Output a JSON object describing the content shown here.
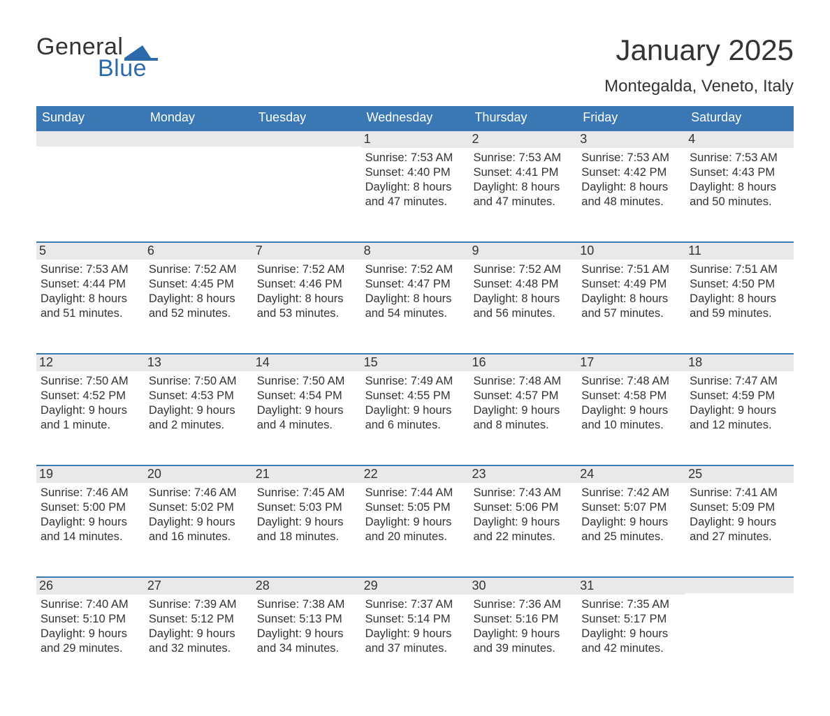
{
  "logo": {
    "text_general": "General",
    "text_blue": "Blue"
  },
  "title": "January 2025",
  "location": "Montegalda, Veneto, Italy",
  "colors": {
    "header_bar": "#3a78b5",
    "daynum_bg": "#e9e9e9",
    "text": "#333333",
    "logo_blue": "#2b6bab",
    "background": "#ffffff"
  },
  "fonts": {
    "title_size": 42,
    "location_size": 24,
    "weekday_size": 18,
    "daynum_size": 18,
    "body_size": 16.5
  },
  "weekdays": [
    "Sunday",
    "Monday",
    "Tuesday",
    "Wednesday",
    "Thursday",
    "Friday",
    "Saturday"
  ],
  "weeks": [
    [
      {
        "empty": true
      },
      {
        "empty": true
      },
      {
        "empty": true
      },
      {
        "day": "1",
        "sunrise": "Sunrise: 7:53 AM",
        "sunset": "Sunset: 4:40 PM",
        "daylight1": "Daylight: 8 hours",
        "daylight2": "and 47 minutes."
      },
      {
        "day": "2",
        "sunrise": "Sunrise: 7:53 AM",
        "sunset": "Sunset: 4:41 PM",
        "daylight1": "Daylight: 8 hours",
        "daylight2": "and 47 minutes."
      },
      {
        "day": "3",
        "sunrise": "Sunrise: 7:53 AM",
        "sunset": "Sunset: 4:42 PM",
        "daylight1": "Daylight: 8 hours",
        "daylight2": "and 48 minutes."
      },
      {
        "day": "4",
        "sunrise": "Sunrise: 7:53 AM",
        "sunset": "Sunset: 4:43 PM",
        "daylight1": "Daylight: 8 hours",
        "daylight2": "and 50 minutes."
      }
    ],
    [
      {
        "day": "5",
        "sunrise": "Sunrise: 7:53 AM",
        "sunset": "Sunset: 4:44 PM",
        "daylight1": "Daylight: 8 hours",
        "daylight2": "and 51 minutes."
      },
      {
        "day": "6",
        "sunrise": "Sunrise: 7:52 AM",
        "sunset": "Sunset: 4:45 PM",
        "daylight1": "Daylight: 8 hours",
        "daylight2": "and 52 minutes."
      },
      {
        "day": "7",
        "sunrise": "Sunrise: 7:52 AM",
        "sunset": "Sunset: 4:46 PM",
        "daylight1": "Daylight: 8 hours",
        "daylight2": "and 53 minutes."
      },
      {
        "day": "8",
        "sunrise": "Sunrise: 7:52 AM",
        "sunset": "Sunset: 4:47 PM",
        "daylight1": "Daylight: 8 hours",
        "daylight2": "and 54 minutes."
      },
      {
        "day": "9",
        "sunrise": "Sunrise: 7:52 AM",
        "sunset": "Sunset: 4:48 PM",
        "daylight1": "Daylight: 8 hours",
        "daylight2": "and 56 minutes."
      },
      {
        "day": "10",
        "sunrise": "Sunrise: 7:51 AM",
        "sunset": "Sunset: 4:49 PM",
        "daylight1": "Daylight: 8 hours",
        "daylight2": "and 57 minutes."
      },
      {
        "day": "11",
        "sunrise": "Sunrise: 7:51 AM",
        "sunset": "Sunset: 4:50 PM",
        "daylight1": "Daylight: 8 hours",
        "daylight2": "and 59 minutes."
      }
    ],
    [
      {
        "day": "12",
        "sunrise": "Sunrise: 7:50 AM",
        "sunset": "Sunset: 4:52 PM",
        "daylight1": "Daylight: 9 hours",
        "daylight2": "and 1 minute."
      },
      {
        "day": "13",
        "sunrise": "Sunrise: 7:50 AM",
        "sunset": "Sunset: 4:53 PM",
        "daylight1": "Daylight: 9 hours",
        "daylight2": "and 2 minutes."
      },
      {
        "day": "14",
        "sunrise": "Sunrise: 7:50 AM",
        "sunset": "Sunset: 4:54 PM",
        "daylight1": "Daylight: 9 hours",
        "daylight2": "and 4 minutes."
      },
      {
        "day": "15",
        "sunrise": "Sunrise: 7:49 AM",
        "sunset": "Sunset: 4:55 PM",
        "daylight1": "Daylight: 9 hours",
        "daylight2": "and 6 minutes."
      },
      {
        "day": "16",
        "sunrise": "Sunrise: 7:48 AM",
        "sunset": "Sunset: 4:57 PM",
        "daylight1": "Daylight: 9 hours",
        "daylight2": "and 8 minutes."
      },
      {
        "day": "17",
        "sunrise": "Sunrise: 7:48 AM",
        "sunset": "Sunset: 4:58 PM",
        "daylight1": "Daylight: 9 hours",
        "daylight2": "and 10 minutes."
      },
      {
        "day": "18",
        "sunrise": "Sunrise: 7:47 AM",
        "sunset": "Sunset: 4:59 PM",
        "daylight1": "Daylight: 9 hours",
        "daylight2": "and 12 minutes."
      }
    ],
    [
      {
        "day": "19",
        "sunrise": "Sunrise: 7:46 AM",
        "sunset": "Sunset: 5:00 PM",
        "daylight1": "Daylight: 9 hours",
        "daylight2": "and 14 minutes."
      },
      {
        "day": "20",
        "sunrise": "Sunrise: 7:46 AM",
        "sunset": "Sunset: 5:02 PM",
        "daylight1": "Daylight: 9 hours",
        "daylight2": "and 16 minutes."
      },
      {
        "day": "21",
        "sunrise": "Sunrise: 7:45 AM",
        "sunset": "Sunset: 5:03 PM",
        "daylight1": "Daylight: 9 hours",
        "daylight2": "and 18 minutes."
      },
      {
        "day": "22",
        "sunrise": "Sunrise: 7:44 AM",
        "sunset": "Sunset: 5:05 PM",
        "daylight1": "Daylight: 9 hours",
        "daylight2": "and 20 minutes."
      },
      {
        "day": "23",
        "sunrise": "Sunrise: 7:43 AM",
        "sunset": "Sunset: 5:06 PM",
        "daylight1": "Daylight: 9 hours",
        "daylight2": "and 22 minutes."
      },
      {
        "day": "24",
        "sunrise": "Sunrise: 7:42 AM",
        "sunset": "Sunset: 5:07 PM",
        "daylight1": "Daylight: 9 hours",
        "daylight2": "and 25 minutes."
      },
      {
        "day": "25",
        "sunrise": "Sunrise: 7:41 AM",
        "sunset": "Sunset: 5:09 PM",
        "daylight1": "Daylight: 9 hours",
        "daylight2": "and 27 minutes."
      }
    ],
    [
      {
        "day": "26",
        "sunrise": "Sunrise: 7:40 AM",
        "sunset": "Sunset: 5:10 PM",
        "daylight1": "Daylight: 9 hours",
        "daylight2": "and 29 minutes."
      },
      {
        "day": "27",
        "sunrise": "Sunrise: 7:39 AM",
        "sunset": "Sunset: 5:12 PM",
        "daylight1": "Daylight: 9 hours",
        "daylight2": "and 32 minutes."
      },
      {
        "day": "28",
        "sunrise": "Sunrise: 7:38 AM",
        "sunset": "Sunset: 5:13 PM",
        "daylight1": "Daylight: 9 hours",
        "daylight2": "and 34 minutes."
      },
      {
        "day": "29",
        "sunrise": "Sunrise: 7:37 AM",
        "sunset": "Sunset: 5:14 PM",
        "daylight1": "Daylight: 9 hours",
        "daylight2": "and 37 minutes."
      },
      {
        "day": "30",
        "sunrise": "Sunrise: 7:36 AM",
        "sunset": "Sunset: 5:16 PM",
        "daylight1": "Daylight: 9 hours",
        "daylight2": "and 39 minutes."
      },
      {
        "day": "31",
        "sunrise": "Sunrise: 7:35 AM",
        "sunset": "Sunset: 5:17 PM",
        "daylight1": "Daylight: 9 hours",
        "daylight2": "and 42 minutes."
      },
      {
        "empty": true
      }
    ]
  ]
}
